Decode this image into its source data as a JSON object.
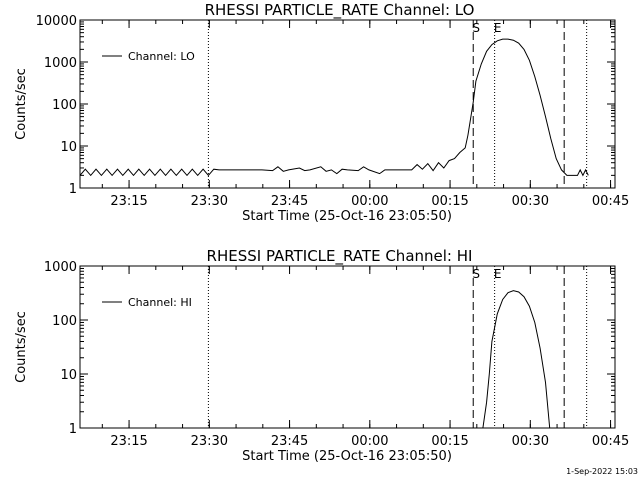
{
  "timestamp": "1-Sep-2022 15:03",
  "chart_data": [
    {
      "type": "line",
      "title": "RHESSI  PARTICLE_RATE  Channel:  LO",
      "xlabel": "Start Time (25-Oct-16 23:05:50)",
      "ylabel": "Counts/sec",
      "yscale": "log",
      "ylim": [
        1,
        10000
      ],
      "xlim_minutes_from_start": [
        0,
        100
      ],
      "x_tick_labels": [
        "23:15",
        "23:30",
        "23:45",
        "00:00",
        "00:15",
        "00:30",
        "00:45"
      ],
      "x_tick_minutes_from_start": [
        9.17,
        24.17,
        39.17,
        54.17,
        69.17,
        84.17,
        99.17
      ],
      "y_tick_labels": [
        "1",
        "10",
        "100",
        "1000",
        "10000"
      ],
      "legend": "top-left",
      "markers": [
        {
          "label": "S",
          "minutes_from_start": 73.5
        },
        {
          "label": "E",
          "minutes_from_start": 77.5
        }
      ],
      "series": [
        {
          "name": "Channel: LO",
          "points": [
            [
              0,
              2
            ],
            [
              1,
              2.8
            ],
            [
              2,
              2
            ],
            [
              3,
              2.8
            ],
            [
              4,
              2
            ],
            [
              5,
              2.8
            ],
            [
              6,
              2
            ],
            [
              7,
              2.8
            ],
            [
              8,
              2
            ],
            [
              9,
              2.8
            ],
            [
              10,
              2
            ],
            [
              11,
              2.8
            ],
            [
              12,
              2
            ],
            [
              13,
              2.8
            ],
            [
              14,
              2
            ],
            [
              15,
              2.8
            ],
            [
              16,
              2
            ],
            [
              17,
              2.8
            ],
            [
              18,
              2
            ],
            [
              19,
              2.8
            ],
            [
              20,
              2
            ],
            [
              21,
              2.8
            ],
            [
              22,
              2
            ],
            [
              23,
              2.8
            ],
            [
              24,
              2
            ],
            [
              25,
              2.8
            ],
            [
              26,
              2.7
            ],
            [
              30,
              2.7
            ],
            [
              34,
              2.7
            ],
            [
              36,
              2.6
            ],
            [
              37,
              3.2
            ],
            [
              38,
              2.5
            ],
            [
              39,
              2.7
            ],
            [
              41,
              3
            ],
            [
              42,
              2.6
            ],
            [
              43,
              2.7
            ],
            [
              45,
              3.2
            ],
            [
              46,
              2.5
            ],
            [
              47,
              2.7
            ],
            [
              48,
              2.2
            ],
            [
              49,
              2.8
            ],
            [
              50,
              2.7
            ],
            [
              52,
              2.6
            ],
            [
              53,
              3.2
            ],
            [
              54,
              2.7
            ],
            [
              56,
              2.2
            ],
            [
              57,
              2.7
            ],
            [
              60,
              2.7
            ],
            [
              62,
              2.7
            ],
            [
              63,
              3.6
            ],
            [
              64,
              2.8
            ],
            [
              65,
              3.8
            ],
            [
              66,
              2.6
            ],
            [
              67,
              4
            ],
            [
              68,
              3
            ],
            [
              69,
              4.5
            ],
            [
              70,
              5
            ],
            [
              71,
              7
            ],
            [
              72,
              9
            ],
            [
              72.5,
              18
            ],
            [
              73,
              45
            ],
            [
              73.5,
              110
            ],
            [
              74,
              350
            ],
            [
              75,
              900
            ],
            [
              76,
              1800
            ],
            [
              77,
              2600
            ],
            [
              78,
              3200
            ],
            [
              79,
              3500
            ],
            [
              80,
              3500
            ],
            [
              81,
              3300
            ],
            [
              82,
              2800
            ],
            [
              83,
              2000
            ],
            [
              84,
              1100
            ],
            [
              85,
              450
            ],
            [
              86,
              160
            ],
            [
              87,
              50
            ],
            [
              88,
              15
            ],
            [
              89,
              5
            ],
            [
              90,
              2.7
            ],
            [
              91,
              2
            ],
            [
              92,
              2
            ],
            [
              93,
              2
            ],
            [
              93.5,
              2.7
            ],
            [
              94,
              2
            ],
            [
              94.5,
              2.7
            ],
            [
              95,
              2
            ]
          ]
        }
      ]
    },
    {
      "type": "line",
      "title": "RHESSI  PARTICLE_RATE  Channel:  HI",
      "xlabel": "Start Time (25-Oct-16 23:05:50)",
      "ylabel": "Counts/sec",
      "yscale": "log",
      "ylim": [
        1,
        1000
      ],
      "xlim_minutes_from_start": [
        0,
        100
      ],
      "x_tick_labels": [
        "23:15",
        "23:30",
        "23:45",
        "00:00",
        "00:15",
        "00:30",
        "00:45"
      ],
      "x_tick_minutes_from_start": [
        9.17,
        24.17,
        39.17,
        54.17,
        69.17,
        84.17,
        99.17
      ],
      "y_tick_labels": [
        "1",
        "10",
        "100",
        "1000"
      ],
      "legend": "top-left",
      "markers": [
        {
          "label": "S",
          "minutes_from_start": 73.5
        },
        {
          "label": "E",
          "minutes_from_start": 77.5
        }
      ],
      "series": [
        {
          "name": "Channel: HI",
          "points": [
            [
              75.3,
              1
            ],
            [
              76,
              3
            ],
            [
              76.5,
              10
            ],
            [
              77,
              40
            ],
            [
              78,
              130
            ],
            [
              79,
              240
            ],
            [
              80,
              320
            ],
            [
              81,
              350
            ],
            [
              82,
              330
            ],
            [
              83,
              270
            ],
            [
              84,
              180
            ],
            [
              85,
              90
            ],
            [
              86,
              30
            ],
            [
              87,
              7
            ],
            [
              87.8,
              1
            ]
          ]
        }
      ]
    }
  ]
}
